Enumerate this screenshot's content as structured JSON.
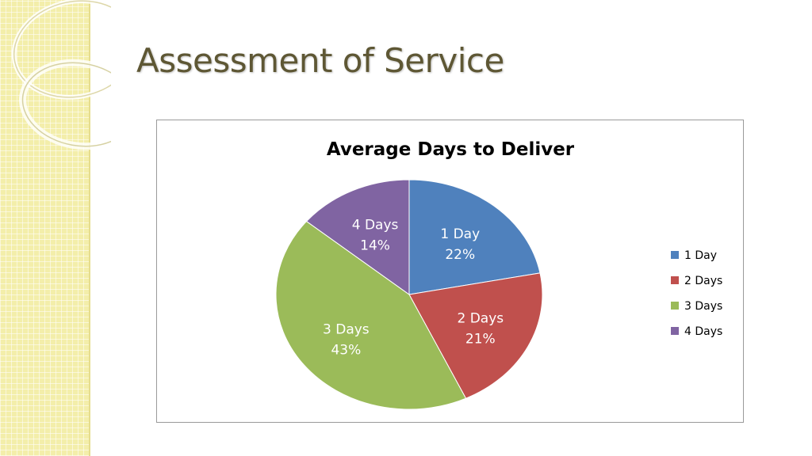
{
  "slide": {
    "title": "Assessment of Service"
  },
  "chart_data": {
    "type": "pie",
    "title": "Average Days to Deliver",
    "categories": [
      "1 Day",
      "2 Days",
      "3 Days",
      "4 Days"
    ],
    "values": [
      22,
      21,
      43,
      14
    ],
    "percent_labels": [
      "22%",
      "21%",
      "43%",
      "14%"
    ],
    "colors": [
      "#4f81bd",
      "#c0504d",
      "#9bbb59",
      "#8064a2"
    ],
    "legend_position": "right"
  },
  "theme": {
    "title_color": "#5e5734",
    "side_band_color": "#f3eeaa"
  }
}
